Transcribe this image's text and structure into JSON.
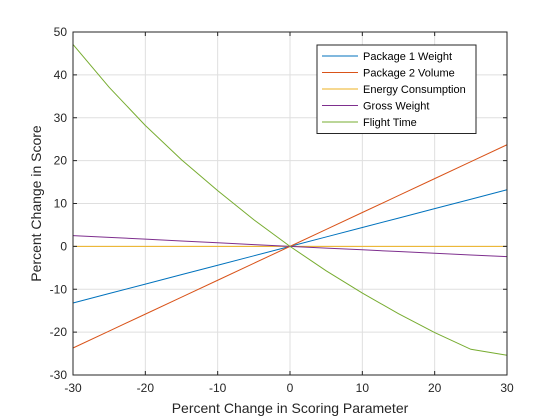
{
  "chart_data": {
    "type": "line",
    "title": "",
    "xlabel": "Percent Change in Scoring Parameter",
    "ylabel": "Percent Change in Score",
    "xlim": [
      -30,
      30
    ],
    "ylim": [
      -30,
      50
    ],
    "xticks": [
      -30,
      -20,
      -10,
      0,
      10,
      20,
      30
    ],
    "yticks": [
      -30,
      -20,
      -10,
      0,
      10,
      20,
      30,
      40,
      50
    ],
    "grid": true,
    "legend_position": "top-right",
    "x": [
      -30,
      -25,
      -20,
      -15,
      -10,
      -5,
      0,
      5,
      10,
      15,
      20,
      25,
      30
    ],
    "series": [
      {
        "name": "Package 1 Weight",
        "color": "#0072BD",
        "values": [
          -13.2,
          -11.0,
          -8.8,
          -6.6,
          -4.4,
          -2.2,
          0,
          2.2,
          4.4,
          6.6,
          8.8,
          11.0,
          13.2
        ]
      },
      {
        "name": "Package 2 Volume",
        "color": "#D95319",
        "values": [
          -23.7,
          -19.75,
          -15.8,
          -11.85,
          -7.9,
          -3.95,
          0,
          3.95,
          7.9,
          11.85,
          15.8,
          19.75,
          23.7
        ]
      },
      {
        "name": "Energy Consumption",
        "color": "#EDB120",
        "values": [
          0,
          0,
          0,
          0,
          0,
          0,
          0,
          0,
          0,
          0,
          0,
          0,
          0
        ]
      },
      {
        "name": "Gross Weight",
        "color": "#7E2F8E",
        "values": [
          2.5,
          2.1,
          1.7,
          1.25,
          0.85,
          0.4,
          0,
          -0.4,
          -0.8,
          -1.2,
          -1.6,
          -2.0,
          -2.4
        ]
      },
      {
        "name": "Flight Time",
        "color": "#77AC30",
        "values": [
          47.1,
          37.1,
          28.2,
          20.2,
          13.0,
          6.2,
          0,
          -5.7,
          -10.9,
          -15.7,
          -20.1,
          -24.0,
          -25.4
        ]
      }
    ]
  }
}
